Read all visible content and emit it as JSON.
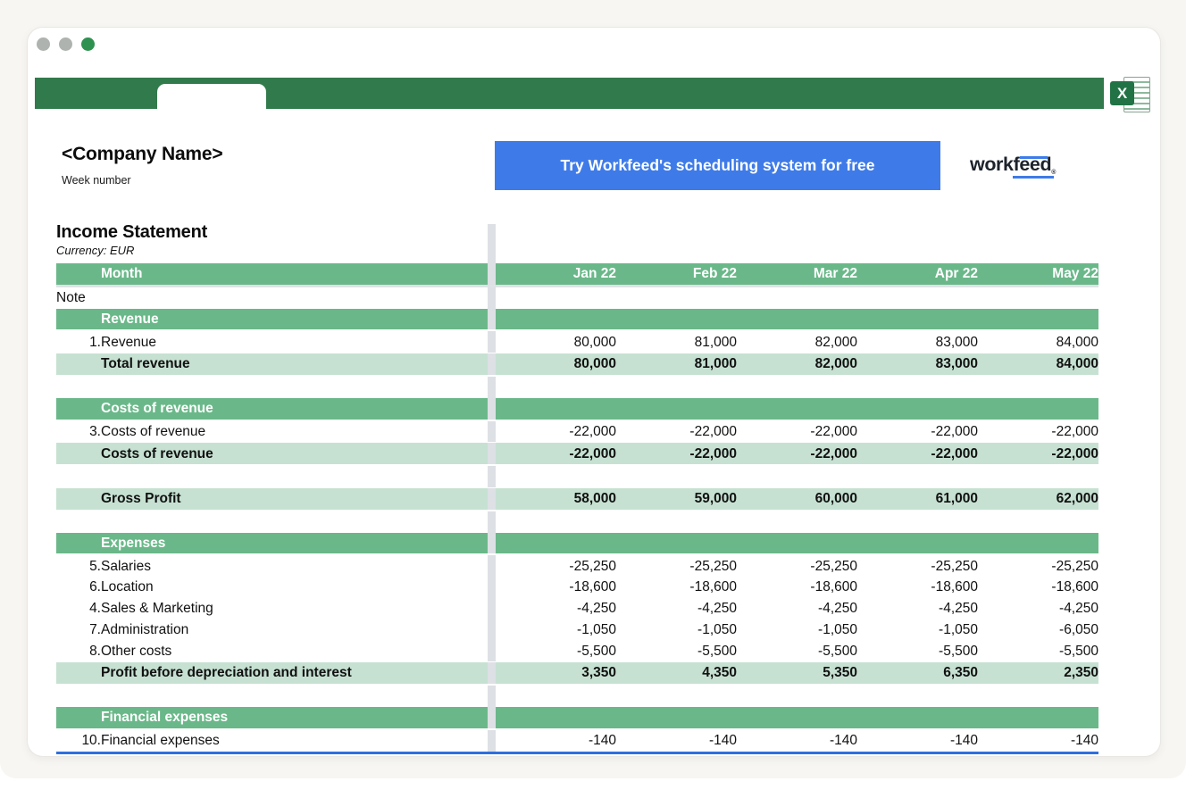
{
  "window": {
    "traffic_lights": [
      "#aeb3af",
      "#aeb3af",
      "#2f9150"
    ]
  },
  "header": {
    "company_name": "<Company Name>",
    "week_label": "Week number",
    "cta_label": "Try Workfeed's scheduling system for free",
    "logo_prefix": "work",
    "logo_suffix": "feed",
    "logo_reg": "®"
  },
  "statement": {
    "title": "Income Statement",
    "currency_label": "Currency: EUR",
    "table": {
      "rows": [
        {
          "type": "month",
          "label": "Month",
          "values": [
            "Jan 22",
            "Feb 22",
            "Mar 22",
            "Apr 22",
            "May 22"
          ]
        },
        {
          "type": "note",
          "label": "Note"
        },
        {
          "type": "section",
          "label": "Revenue"
        },
        {
          "type": "item",
          "note": "1.",
          "label": "Revenue",
          "values": [
            "80,000",
            "81,000",
            "82,000",
            "83,000",
            "84,000"
          ]
        },
        {
          "type": "total",
          "label": "Total revenue",
          "values": [
            "80,000",
            "81,000",
            "82,000",
            "83,000",
            "84,000"
          ]
        },
        {
          "type": "blank"
        },
        {
          "type": "section",
          "label": "Costs of revenue"
        },
        {
          "type": "item",
          "note": "3.",
          "label": "Costs of revenue",
          "values": [
            "-22,000",
            "-22,000",
            "-22,000",
            "-22,000",
            "-22,000"
          ]
        },
        {
          "type": "total",
          "label": "Costs of revenue",
          "values": [
            "-22,000",
            "-22,000",
            "-22,000",
            "-22,000",
            "-22,000"
          ]
        },
        {
          "type": "blank"
        },
        {
          "type": "total",
          "label": "Gross Profit",
          "values": [
            "58,000",
            "59,000",
            "60,000",
            "61,000",
            "62,000"
          ]
        },
        {
          "type": "blank"
        },
        {
          "type": "section",
          "label": "Expenses"
        },
        {
          "type": "item",
          "note": "5.",
          "label": "Salaries",
          "values": [
            "-25,250",
            "-25,250",
            "-25,250",
            "-25,250",
            "-25,250"
          ]
        },
        {
          "type": "item",
          "note": "6.",
          "label": "Location",
          "values": [
            "-18,600",
            "-18,600",
            "-18,600",
            "-18,600",
            "-18,600"
          ]
        },
        {
          "type": "item",
          "note": "4.",
          "label": "Sales & Marketing",
          "values": [
            "-4,250",
            "-4,250",
            "-4,250",
            "-4,250",
            "-4,250"
          ]
        },
        {
          "type": "item",
          "note": "7.",
          "label": "Administration",
          "values": [
            "-1,050",
            "-1,050",
            "-1,050",
            "-1,050",
            "-6,050"
          ]
        },
        {
          "type": "item",
          "note": "8.",
          "label": "Other costs",
          "values": [
            "-5,500",
            "-5,500",
            "-5,500",
            "-5,500",
            "-5,500"
          ]
        },
        {
          "type": "total",
          "label": "Profit before depreciation and interest",
          "values": [
            "3,350",
            "4,350",
            "5,350",
            "6,350",
            "2,350"
          ]
        },
        {
          "type": "blank"
        },
        {
          "type": "section",
          "label": "Financial expenses"
        },
        {
          "type": "item",
          "note": "10.",
          "label": "Financial expenses",
          "values": [
            "-140",
            "-140",
            "-140",
            "-140",
            "-140"
          ],
          "underline": true
        }
      ]
    }
  },
  "colors": {
    "bar_green": "#317a4b",
    "section_green": "#6ab889",
    "total_green": "#c6e1d2",
    "divider_gray": "#dde0e4",
    "cta_blue": "#3e7be8",
    "underline_blue": "#2e6fe0",
    "excel_green": "#217346"
  }
}
